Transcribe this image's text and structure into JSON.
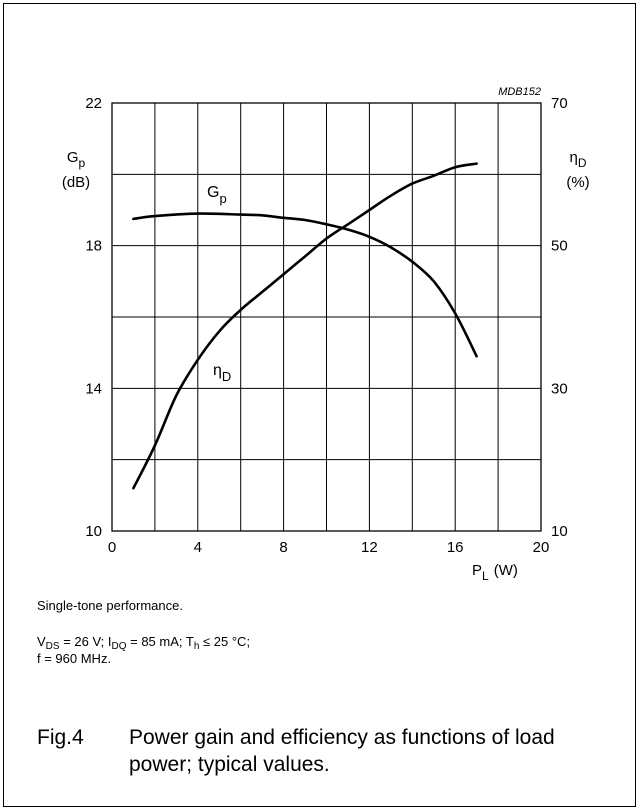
{
  "chart_data": {
    "type": "line",
    "figure_code": "MDB152",
    "x_axis": {
      "label_symbol": "P",
      "label_sub": "L",
      "label_unit": "(W)",
      "min": 0,
      "max": 20,
      "ticks": [
        "0",
        "4",
        "8",
        "12",
        "16",
        "20"
      ]
    },
    "y_left": {
      "label_symbol": "G",
      "label_sub": "p",
      "label_unit": "(dB)",
      "min": 10,
      "max": 22,
      "ticks": [
        "10",
        "14",
        "18",
        "22"
      ]
    },
    "y_right": {
      "label_symbol": "η",
      "label_sub": "D",
      "label_unit": "(%)",
      "min": 10,
      "max": 70,
      "ticks": [
        "10",
        "30",
        "50",
        "70"
      ]
    },
    "grid": true,
    "series": [
      {
        "name_symbol": "G",
        "name_sub": "p",
        "axis": "left",
        "x": [
          1,
          2,
          4,
          6,
          7,
          8,
          9,
          10,
          11,
          12,
          13,
          14,
          15,
          16,
          17
        ],
        "y": [
          18.75,
          18.83,
          18.9,
          18.87,
          18.85,
          18.78,
          18.72,
          18.6,
          18.45,
          18.25,
          17.95,
          17.55,
          17.0,
          16.1,
          14.9
        ]
      },
      {
        "name_symbol": "η",
        "name_sub": "D",
        "axis": "right",
        "x": [
          1,
          2,
          3,
          4,
          5,
          6,
          7,
          8,
          9,
          10,
          11,
          12,
          13,
          14,
          15,
          16,
          17
        ],
        "y": [
          16,
          22,
          29,
          34,
          38,
          41,
          43.5,
          46,
          48.5,
          51,
          53,
          55,
          57,
          58.7,
          59.8,
          61,
          61.5
        ]
      }
    ]
  },
  "notes": {
    "line1": "Single-tone performance.",
    "line2": {
      "v_sym": "V",
      "v_sub": "DS",
      "v_val": " = 26 V; ",
      "i_sym": "I",
      "i_sub": "DQ",
      "i_val": " = 85 mA; ",
      "t_sym": "T",
      "t_sub": "h",
      "t_val": " ≤ 25 °C;"
    },
    "line3": "f = 960 MHz."
  },
  "caption": {
    "fig": "Fig.4",
    "text": "Power gain and efficiency as functions of load power; typical values."
  }
}
